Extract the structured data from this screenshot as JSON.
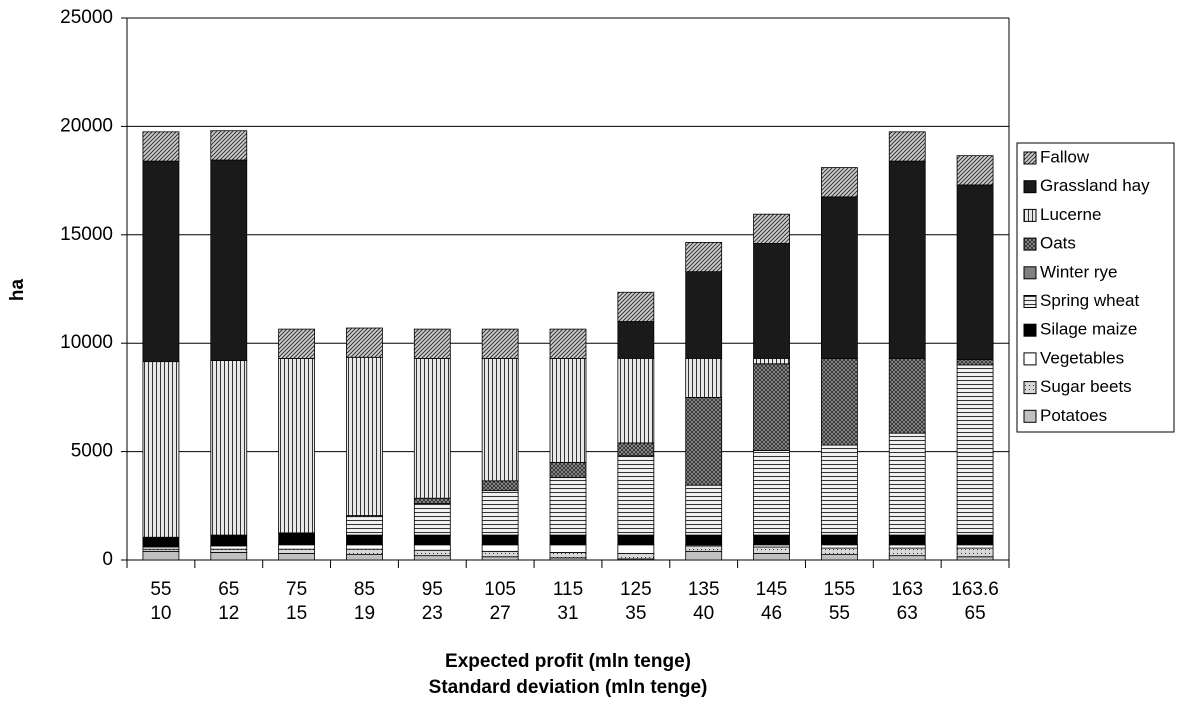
{
  "chart_data": {
    "type": "stacked-bar",
    "x_label": [
      "Expected profit (mln tenge)",
      "Standard deviation (mln tenge)"
    ],
    "y_label": "ha",
    "categories": [
      [
        "55",
        "10"
      ],
      [
        "65",
        "12"
      ],
      [
        "75",
        "15"
      ],
      [
        "85",
        "19"
      ],
      [
        "95",
        "23"
      ],
      [
        "105",
        "27"
      ],
      [
        "115",
        "31"
      ],
      [
        "125",
        "35"
      ],
      [
        "135",
        "40"
      ],
      [
        "145",
        "46"
      ],
      [
        "155",
        "55"
      ],
      [
        "163",
        "63"
      ],
      [
        "163.6",
        "65"
      ]
    ],
    "ylim": [
      0,
      25000
    ],
    "yticks": [
      0,
      5000,
      10000,
      15000,
      20000,
      25000
    ],
    "grid": true,
    "legend": "right",
    "series": [
      {
        "name": "Potatoes",
        "color": "#c0c0c0",
        "pattern": "solid",
        "values": [
          400,
          350,
          300,
          250,
          200,
          150,
          100,
          50,
          400,
          300,
          250,
          200,
          150
        ]
      },
      {
        "name": "Sugar beets",
        "color": "#d8d8d8",
        "pattern": "dots",
        "values": [
          100,
          150,
          200,
          250,
          250,
          250,
          250,
          250,
          250,
          300,
          300,
          350,
          400
        ]
      },
      {
        "name": "Vegetables",
        "color": "#ffffff",
        "pattern": "solid",
        "values": [
          100,
          150,
          200,
          200,
          250,
          300,
          350,
          400,
          50,
          100,
          150,
          150,
          150
        ]
      },
      {
        "name": "Silage maize",
        "color": "#000000",
        "pattern": "solid",
        "values": [
          450,
          500,
          550,
          450,
          450,
          450,
          450,
          450,
          450,
          450,
          450,
          450,
          450
        ]
      },
      {
        "name": "Spring wheat",
        "color": "#f0f0f0",
        "pattern": "horizontal",
        "values": [
          0,
          0,
          0,
          850,
          1450,
          2050,
          2650,
          3650,
          2300,
          3900,
          4150,
          4700,
          7850
        ]
      },
      {
        "name": "Winter rye",
        "color": "#808080",
        "pattern": "solid",
        "values": [
          0,
          0,
          0,
          0,
          0,
          0,
          0,
          0,
          0,
          0,
          0,
          0,
          0
        ]
      },
      {
        "name": "Oats",
        "color": "#a0a0a0",
        "pattern": "crosshatch",
        "values": [
          0,
          0,
          0,
          50,
          250,
          450,
          700,
          600,
          4050,
          4000,
          4000,
          3450,
          250
        ]
      },
      {
        "name": "Lucerne",
        "color": "#e8e8e8",
        "pattern": "vertical",
        "values": [
          8100,
          8050,
          8050,
          7300,
          6450,
          5650,
          4800,
          3900,
          1800,
          250,
          0,
          0,
          0
        ]
      },
      {
        "name": "Grassland hay",
        "color": "#1a1a1a",
        "pattern": "solid",
        "values": [
          9250,
          9250,
          0,
          0,
          0,
          0,
          0,
          1700,
          4000,
          5300,
          7450,
          9100,
          8050
        ]
      },
      {
        "name": "Fallow",
        "color": "#d0d0d0",
        "pattern": "diagonal",
        "values": [
          1350,
          1350,
          1350,
          1350,
          1350,
          1350,
          1350,
          1350,
          1350,
          1350,
          1350,
          1350,
          1350
        ]
      }
    ]
  }
}
